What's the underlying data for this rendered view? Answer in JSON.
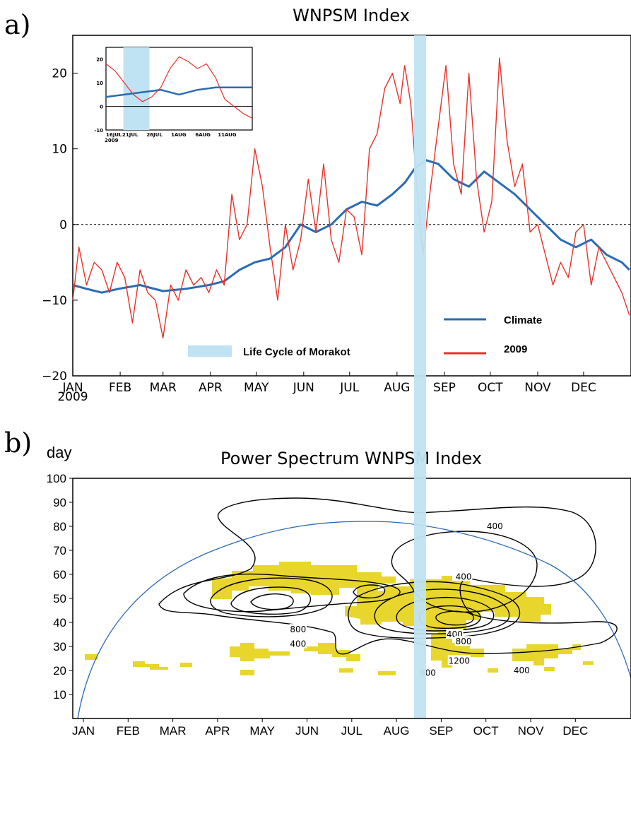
{
  "chart_data": [
    {
      "panel": "a)",
      "type": "line",
      "title": "WNPSM Index",
      "x_tick_labels": [
        "JAN",
        "FEB",
        "MAR",
        "APR",
        "MAY",
        "JUN",
        "JUL",
        "AUG",
        "SEP",
        "OCT",
        "NOV",
        "DEC"
      ],
      "x_year_label": "2009",
      "ylim": [
        -20,
        25
      ],
      "y_ticks": [
        -20,
        -10,
        0,
        10,
        20
      ],
      "zero_line": "dashed",
      "highlight_band": {
        "label": "Life Cycle of Morakot",
        "from_day": 218,
        "to_day": 224,
        "color": "#bfe3f2"
      },
      "legend": [
        {
          "label": "Climate",
          "color": "#2a6bb5"
        },
        {
          "label": "2009",
          "color": "#e8312a"
        }
      ],
      "series": [
        {
          "name": "Climate",
          "color": "#2a6bb5",
          "x_day": [
            1,
            10,
            20,
            31,
            45,
            60,
            75,
            90,
            100,
            110,
            120,
            130,
            140,
            150,
            160,
            170,
            180,
            190,
            200,
            210,
            218,
            225,
            232,
            240,
            250,
            260,
            270,
            280,
            290,
            300,
            310,
            320,
            330,
            340,
            350,
            360,
            365
          ],
          "values": [
            -8,
            -8.5,
            -9,
            -8.5,
            -8,
            -8.8,
            -8.5,
            -8,
            -7.5,
            -6,
            -5,
            -4.5,
            -3,
            0,
            -1,
            0,
            2,
            3,
            2.5,
            4,
            5.5,
            7.5,
            8.5,
            8,
            6,
            5,
            7,
            5.5,
            4,
            2,
            0,
            -2,
            -3,
            -2,
            -4,
            -5,
            -6
          ]
        },
        {
          "name": "2009",
          "color": "#e8312a",
          "x_day": [
            1,
            5,
            10,
            15,
            20,
            25,
            30,
            35,
            40,
            45,
            50,
            55,
            60,
            65,
            70,
            75,
            80,
            85,
            90,
            95,
            100,
            105,
            110,
            115,
            120,
            125,
            130,
            135,
            140,
            145,
            150,
            155,
            160,
            165,
            170,
            175,
            180,
            185,
            190,
            195,
            200,
            205,
            210,
            215,
            218,
            222,
            226,
            230,
            235,
            240,
            245,
            250,
            255,
            260,
            265,
            270,
            275,
            280,
            285,
            290,
            295,
            300,
            305,
            310,
            315,
            320,
            325,
            330,
            335,
            340,
            345,
            350,
            355,
            360,
            365
          ],
          "values": [
            -10,
            -3,
            -8,
            -5,
            -6,
            -9,
            -5,
            -7,
            -13,
            -6,
            -9,
            -10,
            -15,
            -8,
            -10,
            -6,
            -8,
            -7,
            -9,
            -6,
            -8,
            4,
            -2,
            0,
            10,
            5,
            -3,
            -10,
            0,
            -6,
            -2,
            6,
            -1,
            8,
            -2,
            -5,
            2,
            1,
            -4,
            10,
            12,
            18,
            20,
            16,
            21,
            16,
            5,
            -4,
            5,
            13,
            21,
            8,
            4,
            20,
            6,
            -1,
            3,
            22,
            11,
            5,
            8,
            -1,
            0,
            -4,
            -8,
            -5,
            -7,
            -1,
            0,
            -8,
            -3,
            -5,
            -7,
            -9,
            -12
          ]
        }
      ],
      "inset": {
        "type": "line",
        "x_tick_labels": [
          "16JUL",
          "21JUL",
          "26JUL",
          "1AUG",
          "6AUG",
          "11AUG"
        ],
        "x_year_label": "2009",
        "ylim": [
          -10,
          25
        ],
        "y_ticks": [
          -10,
          0,
          10,
          20
        ],
        "band": {
          "from_day": 3.8,
          "to_day": 9.5
        },
        "series": [
          {
            "name": "Climate",
            "color": "#2a6bb5",
            "x_day": [
              0,
              4,
              8,
              12,
              16,
              20,
              24,
              28,
              32
            ],
            "values": [
              4,
              5,
              6,
              7,
              5,
              7,
              8,
              8,
              8
            ]
          },
          {
            "name": "2009",
            "color": "#e8312a",
            "x_day": [
              0,
              2,
              4,
              6,
              8,
              10,
              12,
              14,
              16,
              18,
              20,
              22,
              24,
              26,
              28,
              30,
              32
            ],
            "values": [
              18,
              15,
              10,
              5,
              2,
              4,
              8,
              16,
              21,
              19,
              16,
              18,
              12,
              3,
              0,
              -3,
              -5
            ]
          }
        ]
      }
    },
    {
      "panel": "b)",
      "type": "heatmap",
      "title": "Power Spectrum WNPSM Index",
      "ylabel": "day",
      "x_tick_labels": [
        "JAN",
        "FEB",
        "MAR",
        "APR",
        "MAY",
        "JUN",
        "JUL",
        "AUG",
        "SEP",
        "OCT",
        "NOV",
        "DEC"
      ],
      "ylim": [
        0,
        100
      ],
      "y_ticks": [
        10,
        20,
        30,
        40,
        50,
        60,
        70,
        80,
        90,
        100
      ],
      "contour_labels": [
        {
          "text": "400",
          "x_month": 9.2,
          "y_day": 80
        },
        {
          "text": "400",
          "x_month": 8.5,
          "y_day": 59
        },
        {
          "text": "800",
          "x_month": 4.8,
          "y_day": 37
        },
        {
          "text": "400",
          "x_month": 4.8,
          "y_day": 31
        },
        {
          "text": "400",
          "x_month": 8.3,
          "y_day": 35
        },
        {
          "text": "800",
          "x_month": 8.5,
          "y_day": 32
        },
        {
          "text": "1200",
          "x_month": 8.4,
          "y_day": 24
        },
        {
          "text": "800",
          "x_month": 7.7,
          "y_day": 19
        },
        {
          "text": "400",
          "x_month": 9.8,
          "y_day": 20
        }
      ],
      "significance_fill_color": "#e8d62c",
      "cone_of_influence_color": "#2a6bb5",
      "band_color": "#bfe3f2"
    }
  ]
}
